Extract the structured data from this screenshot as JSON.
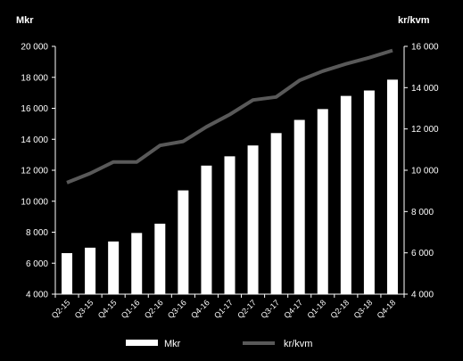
{
  "chart_data": {
    "type": "bar",
    "categories": [
      "Q2-15",
      "Q3-15",
      "Q4-15",
      "Q1-16",
      "Q2-16",
      "Q3-16",
      "Q4-16",
      "Q1-17",
      "Q2-17",
      "Q3-17",
      "Q4-17",
      "Q1-18",
      "Q2-18",
      "Q3-18",
      "Q4-18"
    ],
    "series": [
      {
        "name": "Mkr",
        "type": "bar",
        "axis": "left",
        "values": [
          6650,
          7000,
          7400,
          7950,
          8550,
          10700,
          12300,
          12900,
          13600,
          14400,
          15250,
          15950,
          16800,
          17150,
          17850
        ]
      },
      {
        "name": "kr/kvm",
        "type": "line",
        "axis": "right",
        "values": [
          9400,
          9850,
          10400,
          10400,
          11200,
          11400,
          12100,
          12700,
          13400,
          13550,
          14350,
          14800,
          15150,
          15450,
          15800
        ]
      }
    ],
    "y_left": {
      "label": "Mkr",
      "min": 4000,
      "max": 20000,
      "step": 2000,
      "ticks": [
        "4 000",
        "6 000",
        "8 000",
        "10 000",
        "12 000",
        "14 000",
        "16 000",
        "18 000",
        "20 000"
      ]
    },
    "y_right": {
      "label": "kr/kvm",
      "min": 4000,
      "max": 16000,
      "step": 2000,
      "ticks": [
        "4 000",
        "6 000",
        "8 000",
        "10 000",
        "12 000",
        "14 000",
        "16 000"
      ]
    },
    "legend": [
      "Mkr",
      "kr/kvm"
    ],
    "legend_position": "bottom",
    "grid": false,
    "colors": {
      "background": "#000000",
      "bars": "#ffffff",
      "line": "#595959",
      "text": "#ffffff",
      "axis": "#ffffff"
    }
  }
}
